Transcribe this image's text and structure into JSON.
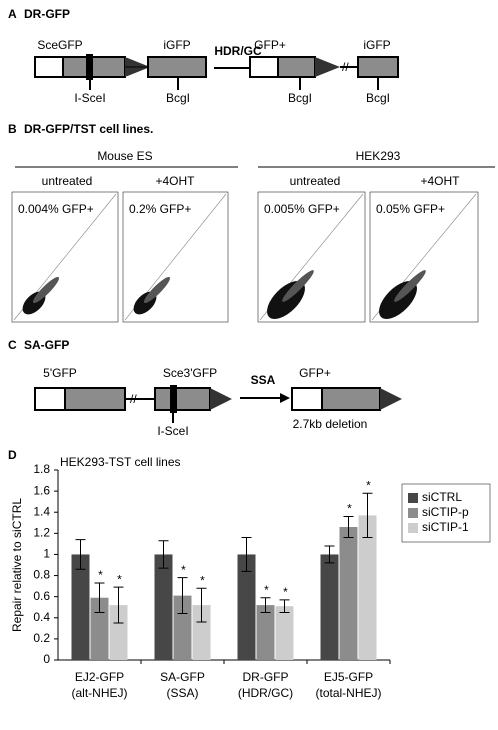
{
  "panel_a": {
    "label": "A",
    "title": "DR-GFP",
    "left_gene": "SceGFP",
    "left_site": "I-SceI",
    "left_igfp": "iGFP",
    "left_bcgi": "BcgI",
    "arrow": "HDR/GC",
    "right_gene": "GFP+",
    "right_bcgi": "BcgI",
    "right_igfp": "iGFP",
    "right_igfp_bcgi": "BcgI"
  },
  "panel_b": {
    "label": "B",
    "title": "DR-GFP/TST cell lines.",
    "groups": [
      "Mouse ES",
      "HEK293"
    ],
    "conditions": [
      "untreated",
      "+4OHT",
      "untreated",
      "+4OHT"
    ],
    "percentages": [
      "0.004% GFP+",
      "0.2% GFP+",
      "0.005% GFP+",
      "0.05% GFP+"
    ]
  },
  "panel_c": {
    "label": "C",
    "title": "SA-GFP",
    "left_gene": "5'GFP",
    "mid_gene": "Sce3'GFP",
    "site": "I-SceI",
    "arrow": "SSA",
    "right_gene": "GFP+",
    "deletion": "2.7kb deletion"
  },
  "chart_data": {
    "type": "bar",
    "label": "D",
    "title": "HEK293-TST cell lines",
    "ylabel": "Repair relative to siCTRL",
    "categories": [
      "EJ2-GFP",
      "SA-GFP",
      "DR-GFP",
      "EJ5-GFP"
    ],
    "category_sublabels": [
      "(alt-NHEJ)",
      "(SSA)",
      "(HDR/GC)",
      "(total-NHEJ)"
    ],
    "series": [
      {
        "name": "siCTRL",
        "color": "#474747",
        "values": [
          1,
          1,
          1,
          1
        ],
        "errors": [
          0.14,
          0.13,
          0.16,
          0.08
        ]
      },
      {
        "name": "siCTIP-p",
        "color": "#8c8c8c",
        "values": [
          0.59,
          0.61,
          0.52,
          1.26
        ],
        "errors": [
          0.14,
          0.17,
          0.07,
          0.1
        ],
        "annotation": "*"
      },
      {
        "name": "siCTIP-1",
        "color": "#cdcdcd",
        "values": [
          0.52,
          0.52,
          0.51,
          1.37
        ],
        "errors": [
          0.17,
          0.16,
          0.06,
          0.21
        ],
        "annotation": "*"
      }
    ],
    "ylim": [
      0,
      1.8
    ],
    "yticks": [
      0,
      0.2,
      0.4,
      0.6,
      0.8,
      1,
      1.2,
      1.4,
      1.6,
      1.8
    ],
    "legend": "right"
  }
}
